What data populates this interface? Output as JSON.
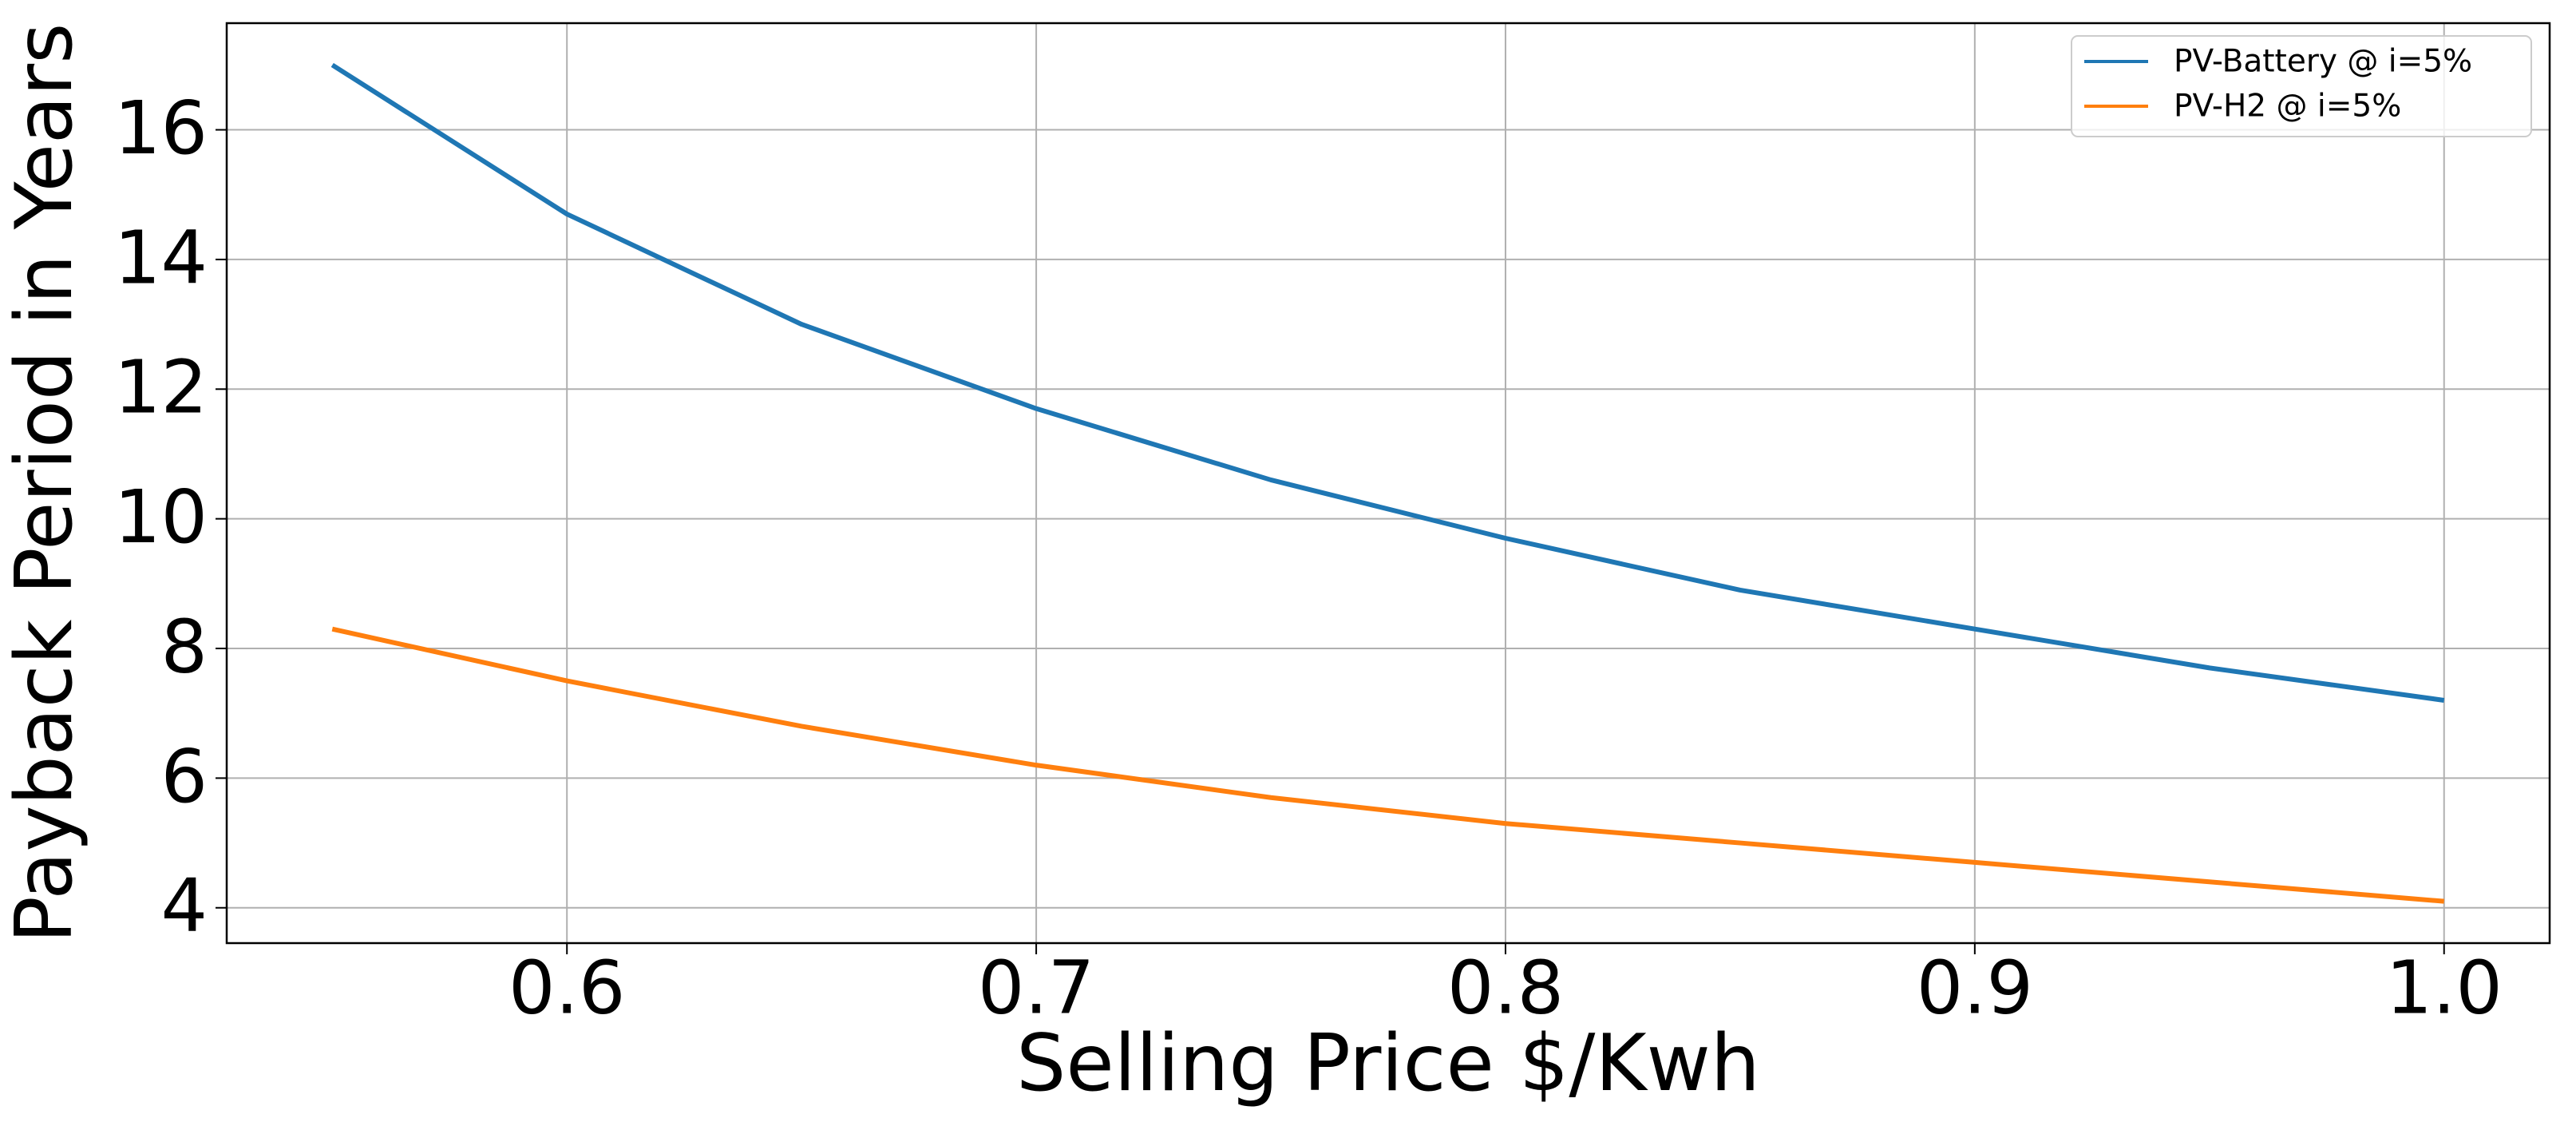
{
  "chart_data": {
    "type": "line",
    "x_label": "Selling Price $/Kwh",
    "y_label": "Payback Period in Years",
    "x": [
      0.55,
      0.6,
      0.65,
      0.7,
      0.75,
      0.8,
      0.85,
      0.9,
      0.95,
      1.0
    ],
    "series": [
      {
        "name": "PV-Battery @ i=5%",
        "color": "#1f77b4",
        "values": [
          17.0,
          14.7,
          13.0,
          11.7,
          10.6,
          9.7,
          8.9,
          8.3,
          7.7,
          7.2
        ]
      },
      {
        "name": "PV-H2 @ i=5%",
        "color": "#ff7f0e",
        "values": [
          8.3,
          7.5,
          6.8,
          6.2,
          5.7,
          5.3,
          5.0,
          4.7,
          4.4,
          4.1
        ]
      }
    ],
    "xlim": [
      0.5275,
      1.0225
    ],
    "ylim": [
      3.455,
      17.645
    ],
    "xticks": [
      0.6,
      0.7,
      0.8,
      0.9,
      {
        "value": 1.0,
        "label": "1.0"
      }
    ],
    "yticks": [
      4,
      6,
      8,
      10,
      12,
      14,
      16
    ],
    "grid": true,
    "legend": "upper right"
  }
}
